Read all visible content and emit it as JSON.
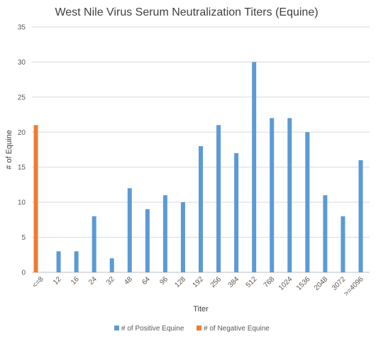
{
  "chart_data": {
    "type": "bar",
    "title": "West Nile Virus Serum Neutralization Titers (Equine)",
    "xlabel": "Titer",
    "ylabel": "# of Equine",
    "ylim": [
      0,
      35
    ],
    "yticks": [
      0,
      5,
      10,
      15,
      20,
      25,
      30,
      35
    ],
    "grid": true,
    "legend_position": "bottom",
    "categories": [
      "<=8",
      "12",
      "16",
      "24",
      "32",
      "48",
      "64",
      "96",
      "128",
      "192",
      "256",
      "384",
      "512",
      "768",
      "1024",
      "1536",
      "2048",
      "3072",
      ">=4096"
    ],
    "series": [
      {
        "name": "# of Positive Equine",
        "color": "#5B9BD5",
        "values": [
          0,
          3,
          3,
          8,
          2,
          12,
          9,
          11,
          10,
          18,
          21,
          17,
          30,
          22,
          22,
          20,
          11,
          8,
          16
        ]
      },
      {
        "name": "# of Negative Equine",
        "color": "#ED7D31",
        "values": [
          21,
          0,
          0,
          0,
          0,
          0,
          0,
          0,
          0,
          0,
          0,
          0,
          0,
          0,
          0,
          0,
          0,
          0,
          0
        ]
      }
    ]
  }
}
